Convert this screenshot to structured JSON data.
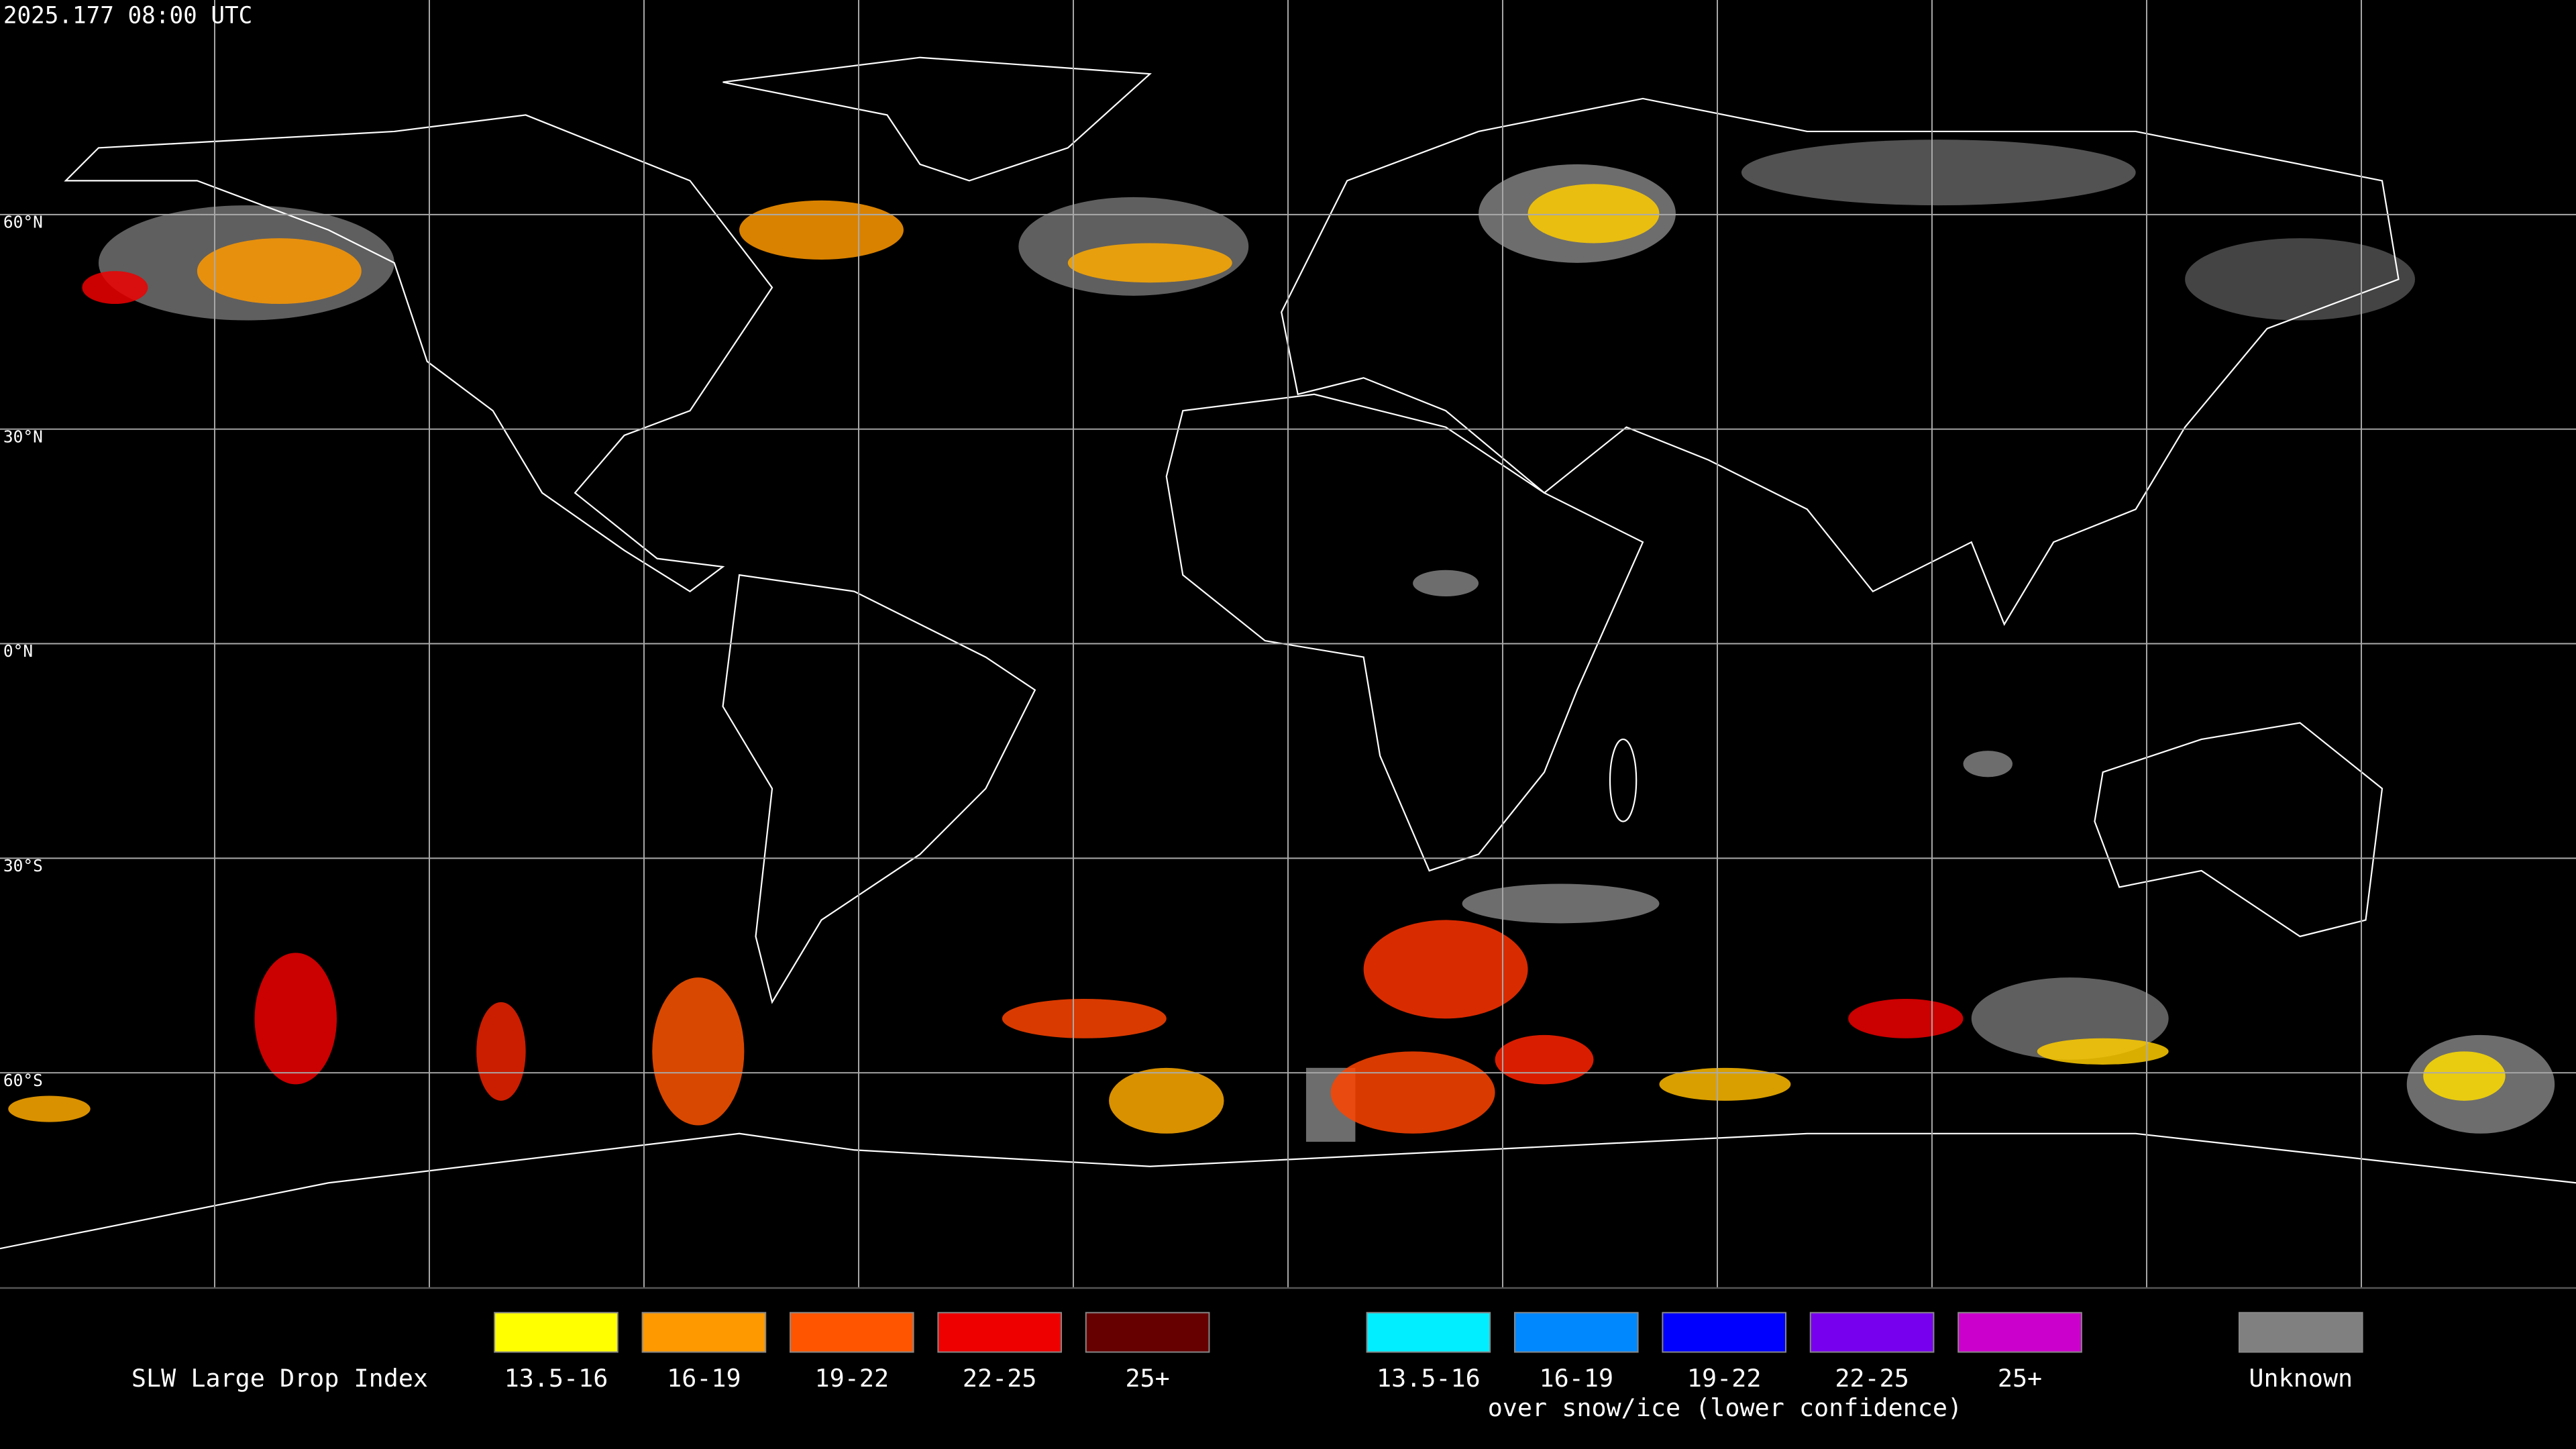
{
  "header": {
    "timestamp": "2025.177 08:00 UTC"
  },
  "map": {
    "lat_labels": [
      "60°N",
      "30°N",
      "0°N",
      "30°S",
      "60°S"
    ]
  },
  "legend": {
    "title": "SLW Large Drop Index",
    "categories": [
      {
        "label": "13.5-16",
        "color": "#ffff00"
      },
      {
        "label": "16-19",
        "color": "#ff9900"
      },
      {
        "label": "19-22",
        "color": "#ff5500"
      },
      {
        "label": "22-25",
        "color": "#ee0000"
      },
      {
        "label": "25+",
        "color": "#660000"
      }
    ],
    "snow_categories": [
      {
        "label": "13.5-16",
        "color": "#00eeff"
      },
      {
        "label": "16-19",
        "color": "#0088ff"
      },
      {
        "label": "19-22",
        "color": "#0000ff"
      },
      {
        "label": "22-25",
        "color": "#7700ee"
      },
      {
        "label": "25+",
        "color": "#cc00cc"
      }
    ],
    "snow_note": "over snow/ice (lower confidence)",
    "unknown": {
      "label": "Unknown",
      "color": "#808080"
    }
  }
}
